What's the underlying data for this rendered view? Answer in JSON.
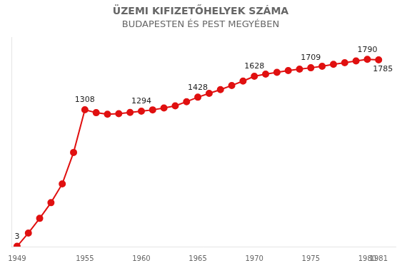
{
  "chart_data": {
    "type": "line",
    "title": "ÜZEMI KIFIZETŐHELYEK SZÁMA",
    "subtitle": "BUDAPESTEN ÉS PEST MEGYÉBEN",
    "x": [
      1949,
      1950,
      1951,
      1952,
      1953,
      1954,
      1955,
      1956,
      1957,
      1958,
      1959,
      1960,
      1961,
      1962,
      1963,
      1964,
      1965,
      1966,
      1967,
      1968,
      1969,
      1970,
      1971,
      1972,
      1973,
      1974,
      1975,
      1976,
      1977,
      1978,
      1979,
      1980,
      1981
    ],
    "values": [
      3,
      130,
      270,
      420,
      600,
      900,
      1308,
      1280,
      1265,
      1270,
      1282,
      1294,
      1307,
      1325,
      1345,
      1385,
      1428,
      1465,
      1500,
      1540,
      1582,
      1628,
      1648,
      1666,
      1682,
      1696,
      1709,
      1724,
      1742,
      1758,
      1774,
      1790,
      1785
    ],
    "color": "#e01010",
    "marker": "circle",
    "xlim": [
      1948.5,
      1982.5
    ],
    "xticks": [
      1949,
      1955,
      1960,
      1965,
      1970,
      1975,
      1980,
      1981
    ],
    "ylim": [
      0,
      2000
    ],
    "tick_labels": "x",
    "grid": false,
    "annotations": [
      {
        "x": 1949,
        "y": 3,
        "text": "3"
      },
      {
        "x": 1955,
        "y": 1308,
        "text": "1308"
      },
      {
        "x": 1960,
        "y": 1294,
        "text": "1294"
      },
      {
        "x": 1965,
        "y": 1428,
        "text": "1428"
      },
      {
        "x": 1970,
        "y": 1628,
        "text": "1628"
      },
      {
        "x": 1975,
        "y": 1709,
        "text": "1709"
      },
      {
        "x": 1980,
        "y": 1790,
        "text": "1790"
      },
      {
        "x": 1981,
        "y": 1785,
        "text": "1785"
      }
    ]
  }
}
